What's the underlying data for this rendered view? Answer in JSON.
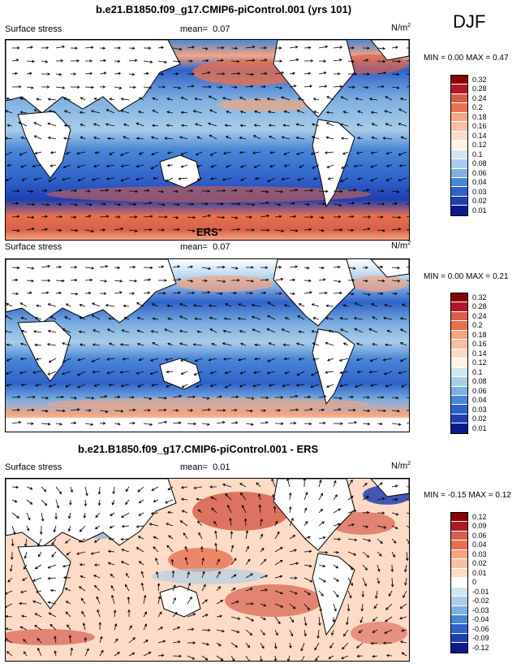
{
  "season": "DJF",
  "panels": [
    {
      "id": "model",
      "title": "b.e21.B1850.f09_g17.CMIP6-piControl.001 (yrs 101)",
      "left_label": "Surface stress",
      "mean_label": "mean=",
      "mean_value": "0.07",
      "units": "N/m",
      "units_sup": "2",
      "min_label": "MIN =",
      "min_value": "0.00",
      "max_label": "MAX =",
      "max_value": "0.47",
      "colorbar": {
        "levels": [
          "0.32",
          "0.28",
          "0.24",
          "0.2",
          "0.18",
          "0.16",
          "0.14",
          "0.12",
          "0.1",
          "0.08",
          "0.06",
          "0.04",
          "0.03",
          "0.02",
          "0.01"
        ],
        "colors": [
          "#8B0000",
          "#B2182B",
          "#D6604D",
          "#E8704F",
          "#F4A582",
          "#F7C0A6",
          "#FDDBC7",
          "#FFF3E8",
          "#D1E5F0",
          "#A9CCEA",
          "#7FB0E0",
          "#4A86D6",
          "#2F62C9",
          "#1F3FB0",
          "#0B1B8C"
        ]
      }
    },
    {
      "id": "obs",
      "title": "ERS",
      "left_label": "Surface stress",
      "mean_label": "mean=",
      "mean_value": "0.07",
      "units": "N/m",
      "units_sup": "2",
      "min_label": "MIN =",
      "min_value": "0.00",
      "max_label": "MAX =",
      "max_value": "0.21",
      "colorbar": {
        "levels": [
          "0.32",
          "0.28",
          "0.24",
          "0.2",
          "0.18",
          "0.16",
          "0.14",
          "0.12",
          "0.1",
          "0.08",
          "0.06",
          "0.04",
          "0.03",
          "0.02",
          "0.01"
        ],
        "colors": [
          "#8B0000",
          "#B2182B",
          "#D6604D",
          "#E8704F",
          "#F4A582",
          "#F7C0A6",
          "#FDDBC7",
          "#FFF3E8",
          "#D1E5F0",
          "#A9CCEA",
          "#7FB0E0",
          "#4A86D6",
          "#2F62C9",
          "#1F3FB0",
          "#0B1B8C"
        ]
      }
    },
    {
      "id": "diff",
      "title": "b.e21.B1850.f09_g17.CMIP6-piControl.001 - ERS",
      "left_label": "Surface stress",
      "mean_label": "mean=",
      "mean_value": "0.01",
      "units": "N/m",
      "units_sup": "2",
      "min_label": "MIN =",
      "min_value": "-0.15",
      "max_label": "MAX =",
      "max_value": "0.12",
      "colorbar": {
        "levels": [
          "0.12",
          "0.09",
          "0.06",
          "0.04",
          "0.03",
          "0.02",
          "0.01",
          "0",
          "-0.01",
          "-0.02",
          "-0.03",
          "-0.04",
          "-0.06",
          "-0.09",
          "-0.12"
        ],
        "colors": [
          "#8B0000",
          "#B2182B",
          "#D6604D",
          "#E8704F",
          "#F4A582",
          "#F7C0A6",
          "#FDDBC7",
          "#FFFFFF",
          "#D1E5F0",
          "#A9CCEA",
          "#7FB0E0",
          "#4A86D6",
          "#2F62C9",
          "#1F3FB0",
          "#0B1B8C"
        ]
      }
    }
  ],
  "chart_data": [
    {
      "type": "heatmap",
      "title": "b.e21.B1850.f09_g17.CMIP6-piControl.001 (yrs 101)",
      "variable": "Surface stress",
      "units": "N/m2",
      "mean": 0.07,
      "min": 0.0,
      "max": 0.47
    },
    {
      "type": "heatmap",
      "title": "ERS",
      "variable": "Surface stress",
      "units": "N/m2",
      "mean": 0.07,
      "min": 0.0,
      "max": 0.21
    },
    {
      "type": "heatmap",
      "title": "b.e21.B1850.f09_g17.CMIP6-piControl.001 - ERS",
      "variable": "Surface stress",
      "units": "N/m2",
      "mean": 0.01,
      "min": -0.15,
      "max": 0.12
    }
  ]
}
